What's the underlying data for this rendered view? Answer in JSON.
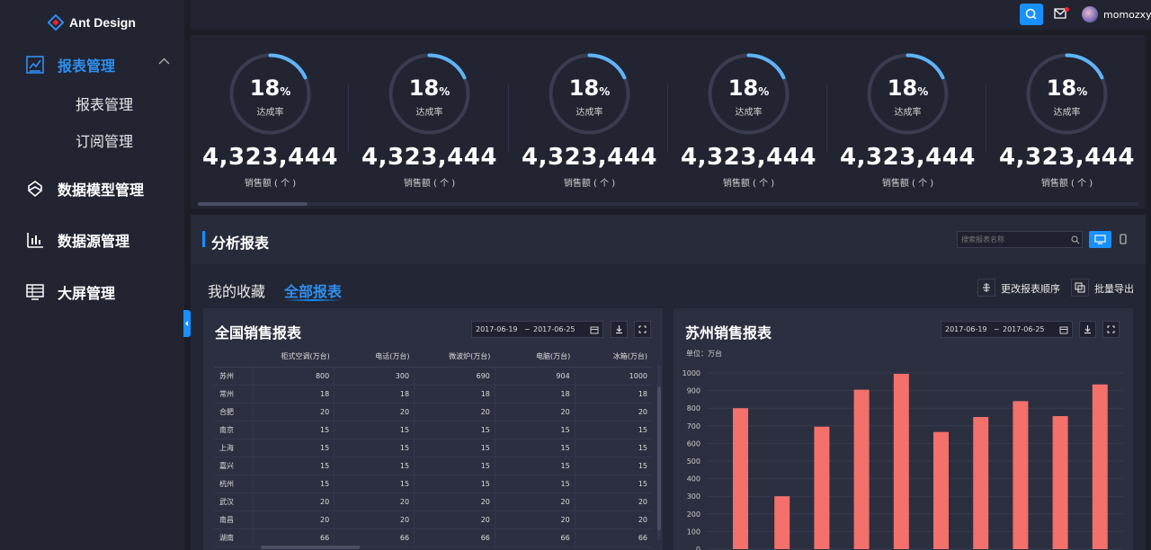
{
  "sidebar": {
    "logo": "Ant Design",
    "items": [
      {
        "label": "报表管理",
        "icon": "report-icon",
        "active": true
      },
      {
        "label": "数据模型管理",
        "icon": "data-model-icon"
      },
      {
        "label": "数据源管理",
        "icon": "bar-chart-icon"
      },
      {
        "label": "大屏管理",
        "icon": "big-screen-icon"
      }
    ],
    "subitems": [
      "报表管理",
      "订阅管理"
    ]
  },
  "topbar": {
    "username": "momozxy"
  },
  "kpis": [
    {
      "percent": "18",
      "percent_unit": "%",
      "ring_label": "达成率",
      "value": "4,323,444",
      "value_label": "销售额 ( 个 )",
      "progress": 0.18
    },
    {
      "percent": "18",
      "percent_unit": "%",
      "ring_label": "达成率",
      "value": "4,323,444",
      "value_label": "销售额 ( 个 )",
      "progress": 0.18
    },
    {
      "percent": "18",
      "percent_unit": "%",
      "ring_label": "达成率",
      "value": "4,323,444",
      "value_label": "销售额 ( 个 )",
      "progress": 0.18
    },
    {
      "percent": "18",
      "percent_unit": "%",
      "ring_label": "达成率",
      "value": "4,323,444",
      "value_label": "销售额 ( 个 )",
      "progress": 0.18
    },
    {
      "percent": "18",
      "percent_unit": "%",
      "ring_label": "达成率",
      "value": "4,323,444",
      "value_label": "销售额 ( 个 )",
      "progress": 0.18
    },
    {
      "percent": "18",
      "percent_unit": "%",
      "ring_label": "达成率",
      "value": "4,323,444",
      "value_label": "销售额 ( 个 )",
      "progress": 0.18
    }
  ],
  "analysis": {
    "title": "分析报表",
    "search_placeholder": "搜索报表名称",
    "tabs": [
      "我的收藏",
      "全部报表"
    ],
    "actions": {
      "reorder": "更改报表顺序",
      "export": "批量导出"
    }
  },
  "national_report": {
    "title": "全国销售报表",
    "date_start": "2017-06-19",
    "date_sep": "~",
    "date_end": "2017-06-25",
    "columns": [
      "",
      "柜式空调(万台)",
      "电话(万台)",
      "微波炉(万台)",
      "电脑(万台)",
      "冰箱(万台)"
    ],
    "rows": [
      [
        "苏州",
        "800",
        "300",
        "690",
        "904",
        "1000"
      ],
      [
        "常州",
        "18",
        "18",
        "18",
        "18",
        "18"
      ],
      [
        "合肥",
        "20",
        "20",
        "20",
        "20",
        "20"
      ],
      [
        "南京",
        "15",
        "15",
        "15",
        "15",
        "15"
      ],
      [
        "上海",
        "15",
        "15",
        "15",
        "15",
        "15"
      ],
      [
        "嘉兴",
        "15",
        "15",
        "15",
        "15",
        "15"
      ],
      [
        "杭州",
        "15",
        "15",
        "15",
        "15",
        "15"
      ],
      [
        "武汉",
        "20",
        "20",
        "20",
        "20",
        "20"
      ],
      [
        "南昌",
        "20",
        "20",
        "20",
        "20",
        "20"
      ],
      [
        "湖南",
        "66",
        "66",
        "66",
        "66",
        "66"
      ]
    ]
  },
  "suzhou_report": {
    "title": "苏州销售报表",
    "date_start": "2017-06-19",
    "date_sep": "~",
    "date_end": "2017-06-25",
    "unit": "单位：万台"
  },
  "chart_data": {
    "type": "bar",
    "title": "苏州销售报表",
    "ylabel": "单位：万台",
    "ylim": [
      0,
      1000
    ],
    "yticks": [
      "0",
      "100",
      "200",
      "300",
      "400",
      "500",
      "600",
      "700",
      "800",
      "900",
      "1000"
    ],
    "values": [
      800,
      300,
      695,
      905,
      995,
      665,
      750,
      840,
      755,
      935
    ],
    "bar_color": "#f4706a",
    "grid": true
  }
}
